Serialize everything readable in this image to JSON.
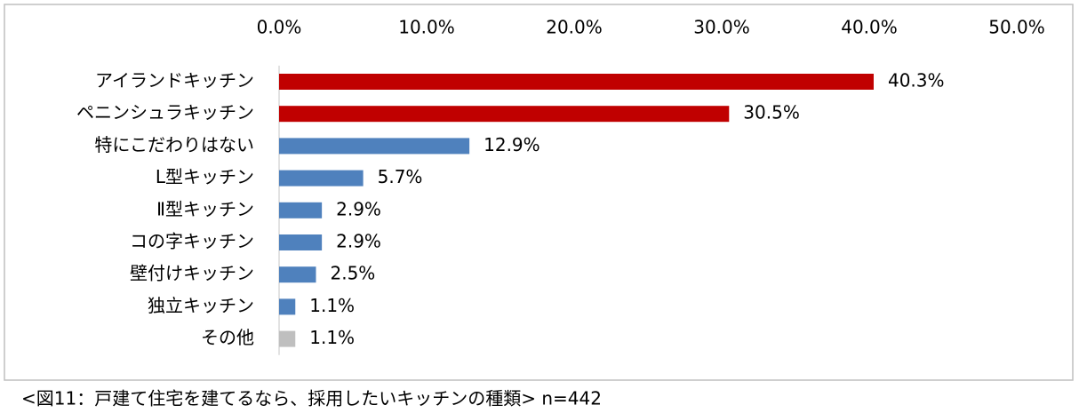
{
  "chart_data": {
    "type": "bar",
    "orientation": "horizontal",
    "categories": [
      "アイランドキッチン",
      "ペニンシュラキッチン",
      "特にこだわりはない",
      "L型キッチン",
      "Ⅱ型キッチン",
      "コの字キッチン",
      "壁付けキッチン",
      "独立キッチン",
      "その他"
    ],
    "values": [
      40.3,
      30.5,
      12.9,
      5.7,
      2.9,
      2.9,
      2.5,
      1.1,
      1.1
    ],
    "value_labels": [
      "40.3%",
      "30.5%",
      "12.9%",
      "5.7%",
      "2.9%",
      "2.9%",
      "2.5%",
      "1.1%",
      "1.1%"
    ],
    "colors": [
      "#c00000",
      "#c00000",
      "#4f81bd",
      "#4f81bd",
      "#4f81bd",
      "#4f81bd",
      "#4f81bd",
      "#4f81bd",
      "#bfbfbf"
    ],
    "xlim": [
      0,
      50
    ],
    "xticks": [
      {
        "value": 0,
        "label": "0.0%"
      },
      {
        "value": 10,
        "label": "10.0%"
      },
      {
        "value": 20,
        "label": "20.0%"
      },
      {
        "value": 30,
        "label": "30.0%"
      },
      {
        "value": 40,
        "label": "40.0%"
      },
      {
        "value": 50,
        "label": "50.0%"
      }
    ],
    "caption": "<図11：戸建て住宅を建てるなら、採用したいキッチンの種類> n=442"
  }
}
